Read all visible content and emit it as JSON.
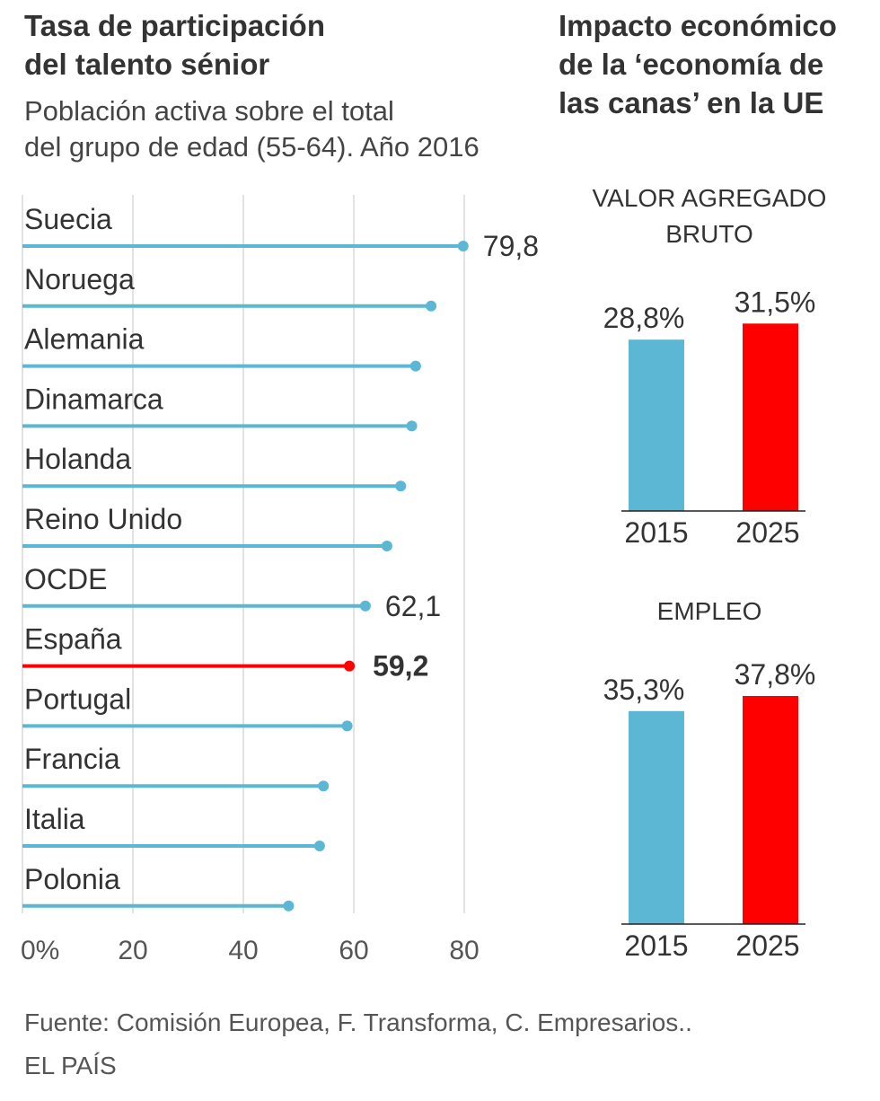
{
  "left": {
    "title_line1": "Tasa de participación",
    "title_line2": "del talento sénior",
    "subtitle_line1": "Población activa sobre el total",
    "subtitle_line2": "del grupo de edad (55-64). Año 2016"
  },
  "right": {
    "title_line1": "Impacto económico",
    "title_line2": "de la ‘economía de",
    "title_line3": "las canas’ en la UE"
  },
  "colors": {
    "bar": "#5bb7d4",
    "highlight": "#ff0000",
    "grid": "#d8d8d8",
    "text": "#333333"
  },
  "chart_data": [
    {
      "type": "bar",
      "orientation": "horizontal",
      "title": "Tasa de participación del talento sénior",
      "subtitle": "Población activa sobre el total del grupo de edad (55-64). Año 2016",
      "categories": [
        "Suecia",
        "Noruega",
        "Alemania",
        "Dinamarca",
        "Holanda",
        "Reino Unido",
        "OCDE",
        "España",
        "Portugal",
        "Francia",
        "Italia",
        "Polonia"
      ],
      "values": [
        79.8,
        74,
        71.2,
        70.5,
        68.5,
        66,
        62.1,
        59.2,
        58.8,
        54.5,
        53.8,
        48.2
      ],
      "value_labels": [
        "79,8",
        "",
        "",
        "",
        "",
        "",
        "62,1",
        "59,2",
        "",
        "",
        "",
        ""
      ],
      "highlight": "España",
      "xlim": [
        0,
        80
      ],
      "xticks": [
        0,
        20,
        40,
        60,
        80
      ],
      "xtick_labels": [
        "0%",
        "20",
        "40",
        "60",
        "80"
      ],
      "grid": true
    },
    {
      "type": "bar",
      "title": "VALOR AGREGADO BRUTO",
      "title_lines": [
        "VALOR AGREGADO",
        "BRUTO"
      ],
      "categories": [
        "2015",
        "2025"
      ],
      "values": [
        28.8,
        31.5
      ],
      "value_labels": [
        "28,8%",
        "31,5%"
      ],
      "ylim": [
        0,
        32
      ]
    },
    {
      "type": "bar",
      "title": "EMPLEO",
      "title_lines": [
        "EMPLEO"
      ],
      "categories": [
        "2015",
        "2025"
      ],
      "values": [
        35.3,
        37.8
      ],
      "value_labels": [
        "35,3%",
        "37,8%"
      ],
      "ylim": [
        0,
        37.8
      ]
    }
  ],
  "footer": {
    "source": "Fuente: Comisión Europea, F. Transforma, C. Empresarios..",
    "brand": "EL PAÍS"
  }
}
